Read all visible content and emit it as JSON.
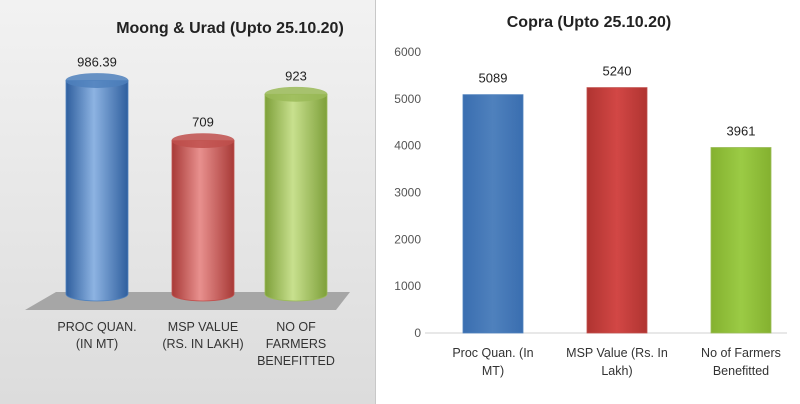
{
  "chart_data": [
    {
      "type": "bar",
      "title": "Moong & Urad (Upto 25.10.20)",
      "categories": [
        [
          "PROC QUAN.",
          "(IN MT)"
        ],
        [
          "MSP VALUE",
          "(RS. IN LAKH)"
        ],
        [
          "NO OF",
          "FARMERS",
          "BENEFITTED"
        ]
      ],
      "values": [
        986.39,
        709,
        923
      ],
      "value_labels": [
        "986.39",
        "709",
        "923"
      ],
      "colors": [
        "#4f81bd",
        "#c0504d",
        "#9bbb59"
      ],
      "ylim": [
        0,
        1100
      ],
      "grid": false
    },
    {
      "type": "bar",
      "title": "Copra (Upto 25.10.20)",
      "categories": [
        [
          "Proc Quan. (In",
          "MT)"
        ],
        [
          "MSP Value (Rs. In",
          "Lakh)"
        ],
        [
          "No of Farmers",
          "Benefitted"
        ]
      ],
      "values": [
        5089,
        5240,
        3961
      ],
      "value_labels": [
        "5089",
        "5240",
        "3961"
      ],
      "colors": [
        "#4f81bd",
        "#c0504d",
        "#9bbb59"
      ],
      "yticks": [
        "0",
        "1000",
        "2000",
        "3000",
        "4000",
        "5000",
        "6000"
      ],
      "ylim": [
        0,
        6000
      ],
      "grid": false
    }
  ]
}
